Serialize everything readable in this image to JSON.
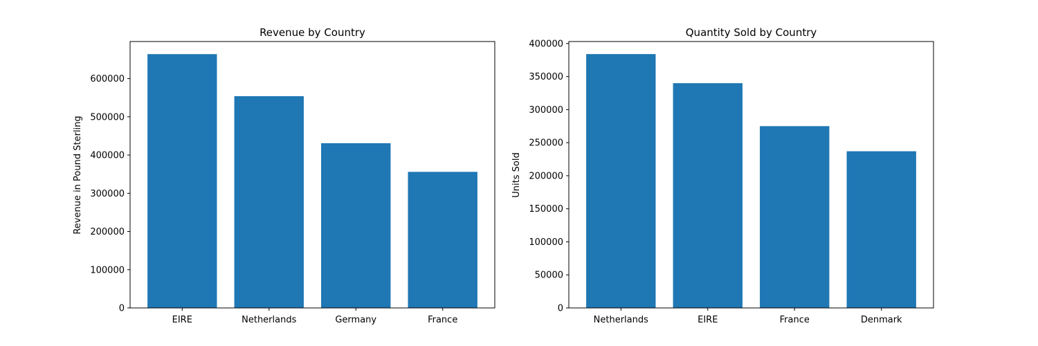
{
  "chart_data": [
    {
      "type": "bar",
      "title": "Revenue by Country",
      "xlabel": "",
      "ylabel": "Revenue in Pound Sterling",
      "categories": [
        "EIRE",
        "Netherlands",
        "Germany",
        "France"
      ],
      "values": [
        664000,
        554000,
        431000,
        356000
      ],
      "ylim": [
        0,
        697000
      ],
      "yticks": [
        0,
        100000,
        200000,
        300000,
        400000,
        500000,
        600000
      ],
      "ytick_labels": [
        "0",
        "100000",
        "200000",
        "300000",
        "400000",
        "500000",
        "600000"
      ],
      "bar_color": "#1f77b4",
      "grid": false,
      "legend": "none"
    },
    {
      "type": "bar",
      "title": "Quantity Sold by Country",
      "xlabel": "",
      "ylabel": "Units Sold",
      "categories": [
        "Netherlands",
        "EIRE",
        "France",
        "Denmark"
      ],
      "values": [
        384000,
        340000,
        275000,
        237000
      ],
      "ylim": [
        0,
        403000
      ],
      "yticks": [
        0,
        50000,
        100000,
        150000,
        200000,
        250000,
        300000,
        350000,
        400000
      ],
      "ytick_labels": [
        "0",
        "50000",
        "100000",
        "150000",
        "200000",
        "250000",
        "300000",
        "350000",
        "400000"
      ],
      "bar_color": "#1f77b4",
      "grid": false,
      "legend": "none"
    }
  ]
}
